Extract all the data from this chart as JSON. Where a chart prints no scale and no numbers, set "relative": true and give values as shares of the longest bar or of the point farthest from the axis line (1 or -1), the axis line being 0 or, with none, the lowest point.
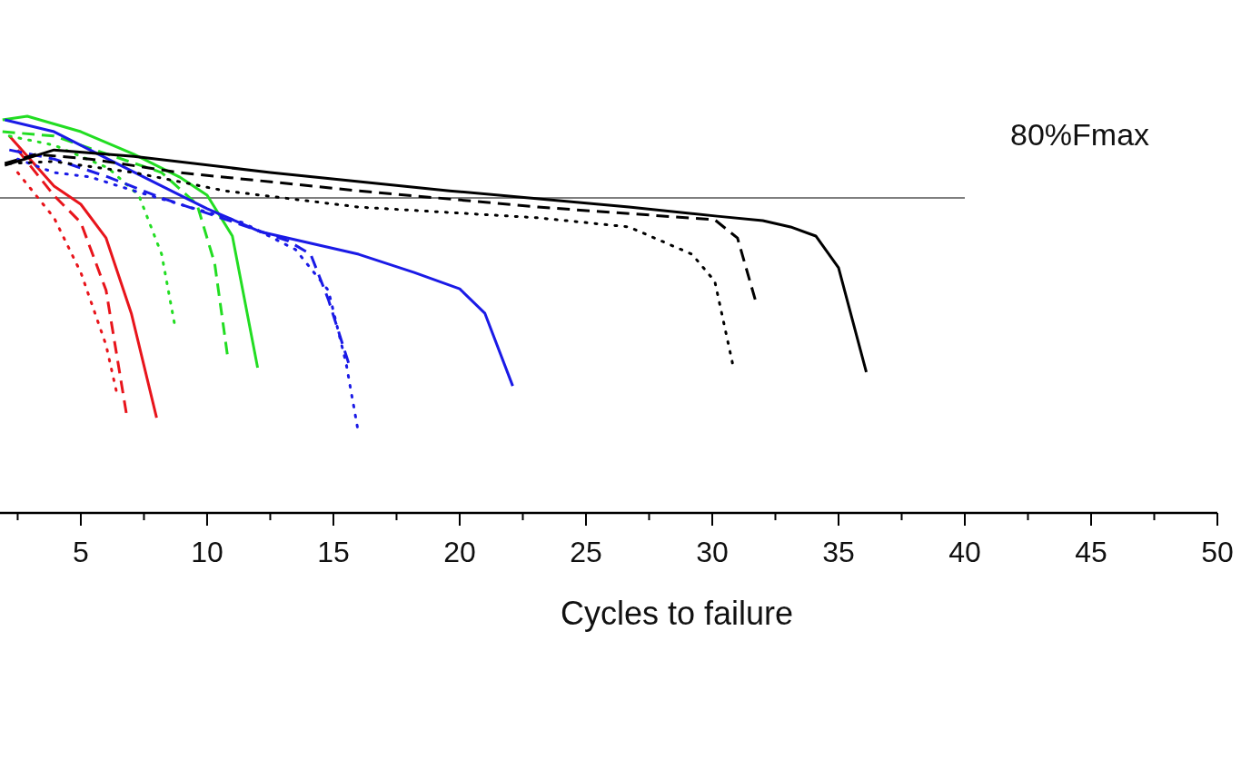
{
  "chart_data": {
    "type": "line",
    "relative": true,
    "xlabel": "Cycles to failure",
    "xlim": [
      1.8,
      50
    ],
    "xticks": [
      {
        "value": 2.5,
        "label": null
      },
      5,
      {
        "value": 7.5,
        "label": null
      },
      10,
      {
        "value": 12.5,
        "label": null
      },
      15,
      {
        "value": 17.5,
        "label": null
      },
      20,
      {
        "value": 22.5,
        "label": null
      },
      25,
      {
        "value": 27.5,
        "label": null
      },
      30,
      {
        "value": 32.5,
        "label": null
      },
      35,
      {
        "value": 37.5,
        "label": null
      },
      40,
      {
        "value": 42.5,
        "label": null
      },
      45,
      {
        "value": 47.5,
        "label": null
      },
      50
    ],
    "tick_labels": "x",
    "grid": false,
    "ref_lines": [
      {
        "axis": "y",
        "value": 0.794,
        "label": "80%Fmax",
        "color": "#555555"
      }
    ],
    "series": [
      {
        "color": "#e8141b",
        "line_style": "solid",
        "x": [
          2.17,
          3.94,
          5,
          6,
          7,
          8
        ],
        "values": [
          0.95,
          0.824,
          0.778,
          0.693,
          0.503,
          0.24
        ]
      },
      {
        "color": "#e8141b",
        "line_style": "dashed",
        "x": [
          2.5,
          3.94,
          5,
          6,
          6.8
        ],
        "values": [
          0.915,
          0.8,
          0.732,
          0.561,
          0.252
        ]
      },
      {
        "color": "#e8141b",
        "line_style": "dotted",
        "x": [
          2.5,
          3.94,
          5,
          6,
          6.4
        ],
        "values": [
          0.858,
          0.744,
          0.606,
          0.423,
          0.309
        ]
      },
      {
        "color": "#22dd22",
        "line_style": "solid",
        "x": [
          1.9,
          2.88,
          5,
          7.1,
          8.9,
          10,
          11,
          12
        ],
        "values": [
          0.991,
          1,
          0.961,
          0.904,
          0.847,
          0.801,
          0.698,
          0.366
        ]
      },
      {
        "color": "#22dd22",
        "line_style": "dashed",
        "x": [
          1.9,
          3.94,
          6.07,
          8.2,
          9.6,
          10.3,
          10.8
        ],
        "values": [
          0.961,
          0.95,
          0.904,
          0.858,
          0.778,
          0.629,
          0.4
        ]
      },
      {
        "color": "#22dd22",
        "line_style": "dotted",
        "x": [
          2.17,
          3.94,
          6.07,
          7.3,
          8.2,
          8.7
        ],
        "values": [
          0.95,
          0.927,
          0.87,
          0.8,
          0.652,
          0.48
        ]
      },
      {
        "color": "#1a1ae6",
        "line_style": "solid",
        "x": [
          1.99,
          3.94,
          6.07,
          8.2,
          10,
          12.1,
          16,
          18.2,
          20,
          21,
          22.1
        ],
        "values": [
          0.991,
          0.961,
          0.892,
          0.824,
          0.767,
          0.709,
          0.652,
          0.606,
          0.565,
          0.503,
          0.32
        ]
      },
      {
        "color": "#1a1ae6",
        "line_style": "dashed",
        "x": [
          2.17,
          3.94,
          6.07,
          8.2,
          11.1,
          13.2,
          14.1,
          14.8,
          15.6
        ],
        "values": [
          0.915,
          0.892,
          0.847,
          0.794,
          0.732,
          0.686,
          0.652,
          0.538,
          0.378
        ]
      },
      {
        "color": "#1a1ae6",
        "line_style": "dotted",
        "x": [
          2.5,
          3.94,
          5.36,
          7.1,
          9.3,
          11.4,
          13.5,
          14.8,
          15.5,
          15.95
        ],
        "values": [
          0.892,
          0.858,
          0.847,
          0.812,
          0.771,
          0.732,
          0.664,
          0.561,
          0.378,
          0.217
        ]
      },
      {
        "color": "#000000",
        "line_style": "solid",
        "x": [
          1.99,
          3.94,
          7.1,
          12.5,
          19.6,
          26.7,
          30.2,
          32,
          33.1,
          34.1,
          35,
          36.1
        ],
        "values": [
          0.876,
          0.915,
          0.899,
          0.858,
          0.812,
          0.771,
          0.748,
          0.737,
          0.721,
          0.698,
          0.618,
          0.355
        ]
      },
      {
        "color": "#000000",
        "line_style": "dashed",
        "x": [
          1.99,
          3.23,
          5.36,
          8.9,
          16,
          23.1,
          30.1,
          31,
          31.7
        ],
        "values": [
          0.881,
          0.904,
          0.892,
          0.858,
          0.812,
          0.771,
          0.739,
          0.693,
          0.538
        ]
      },
      {
        "color": "#000000",
        "line_style": "dotted",
        "x": [
          2.17,
          3.94,
          7.1,
          10.7,
          16,
          23.1,
          26.7,
          29.2,
          30.1,
          30.8
        ],
        "values": [
          0.881,
          0.886,
          0.858,
          0.812,
          0.771,
          0.744,
          0.721,
          0.652,
          0.584,
          0.378
        ]
      }
    ]
  }
}
